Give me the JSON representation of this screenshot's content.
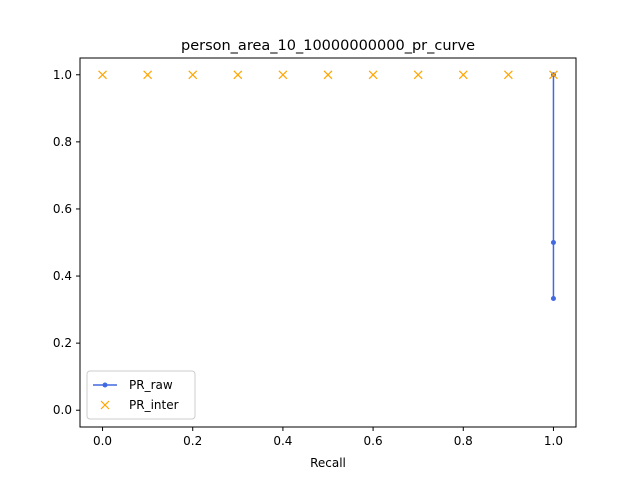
{
  "chart_data": {
    "type": "line",
    "title": "person_area_10_10000000000_pr_curve",
    "xlabel": "Recall",
    "ylabel": "",
    "xlim": [
      -0.05,
      1.05
    ],
    "ylim": [
      -0.05,
      1.05
    ],
    "grid": false,
    "legend_position": "lower-left",
    "xticks": [
      "0.0",
      "0.2",
      "0.4",
      "0.6",
      "0.8",
      "1.0"
    ],
    "yticks": [
      "0.0",
      "0.2",
      "0.4",
      "0.6",
      "0.8",
      "1.0"
    ],
    "series": [
      {
        "name": "PR_raw",
        "style": "line-dot",
        "color": "#4169e1",
        "x": [
          1.0,
          1.0,
          1.0
        ],
        "y": [
          1.0,
          0.5,
          0.333
        ]
      },
      {
        "name": "PR_inter",
        "style": "x-marker",
        "color": "#ffa500",
        "x": [
          0.0,
          0.1,
          0.2,
          0.3,
          0.4,
          0.5,
          0.6,
          0.7,
          0.8,
          0.9,
          1.0
        ],
        "y": [
          1.0,
          1.0,
          1.0,
          1.0,
          1.0,
          1.0,
          1.0,
          1.0,
          1.0,
          1.0,
          1.0
        ]
      }
    ]
  }
}
